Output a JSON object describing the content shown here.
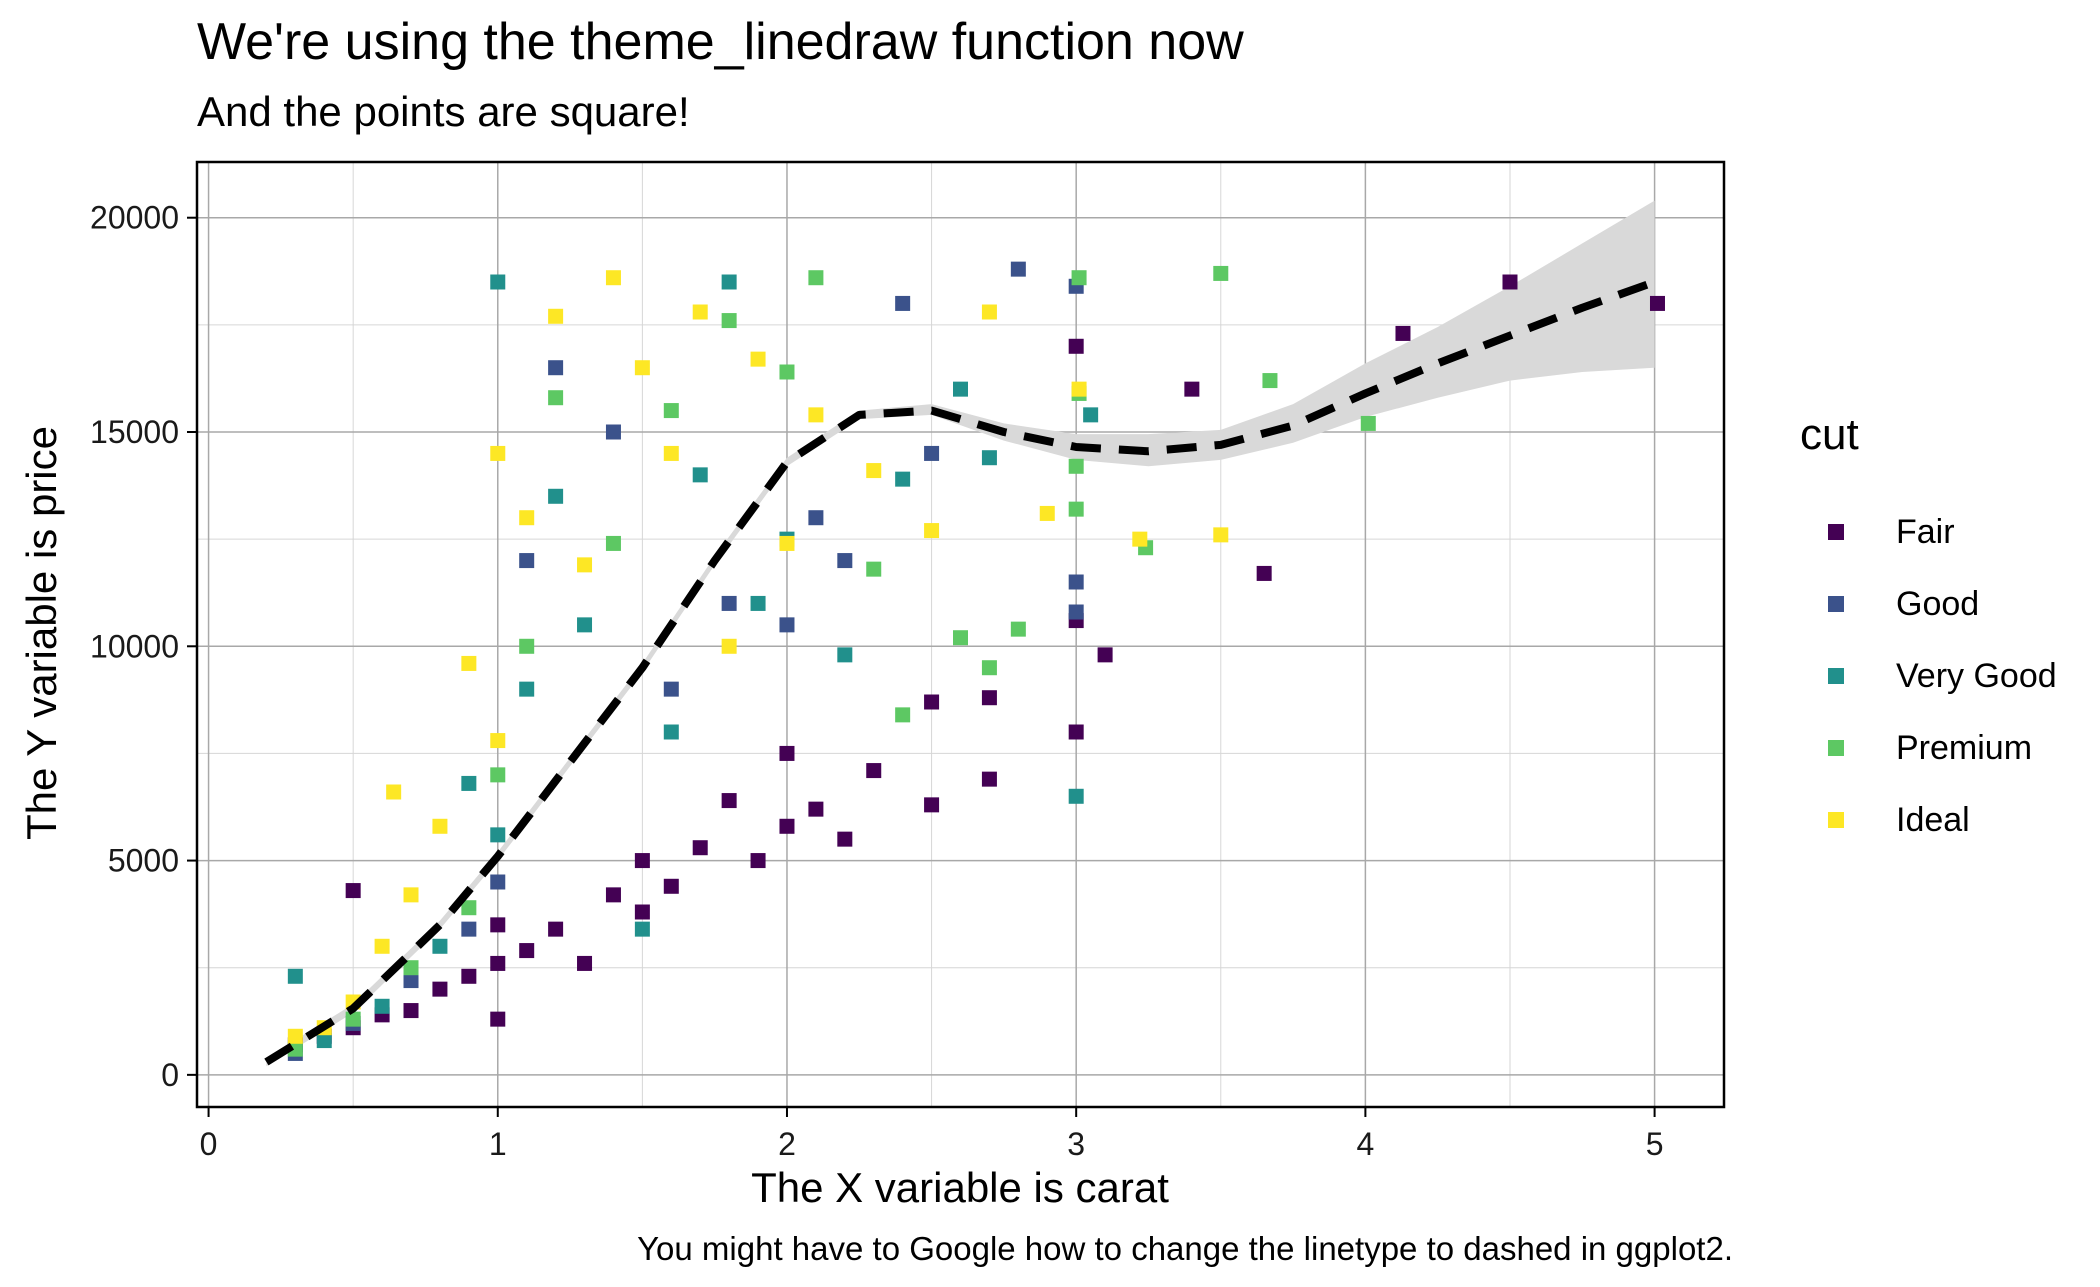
{
  "chart_data": {
    "type": "scatter",
    "title": "We're using the theme_linedraw function now",
    "subtitle": "And the points are square!",
    "caption": "You might have to Google how to change the linetype to dashed in ggplot2.",
    "xlabel": "The X variable is carat",
    "ylabel": "The Y variable is price",
    "xlim": [
      -0.04,
      5.24
    ],
    "ylim": [
      -750,
      21300
    ],
    "xticks": [
      0,
      1,
      2,
      3,
      4,
      5
    ],
    "yticks": [
      0,
      5000,
      10000,
      15000,
      20000
    ],
    "xtick_labels": [
      "0",
      "1",
      "2",
      "3",
      "4",
      "5"
    ],
    "ytick_labels": [
      "0",
      "5000",
      "10000",
      "15000",
      "20000"
    ],
    "grid": true,
    "legend": {
      "title": "cut",
      "position": "right",
      "entries": [
        {
          "name": "Fair",
          "color": "#440154"
        },
        {
          "name": "Good",
          "color": "#3b528b"
        },
        {
          "name": "Very Good",
          "color": "#21908c"
        },
        {
          "name": "Premium",
          "color": "#5dc863"
        },
        {
          "name": "Ideal",
          "color": "#fde725"
        }
      ]
    },
    "marker": "square",
    "smooth": {
      "linetype": "dashed",
      "color": "#000000",
      "ribbon_color": "#d9d9d9",
      "points": [
        {
          "x": 0.2,
          "y": 300,
          "lo": 200,
          "hi": 400
        },
        {
          "x": 0.5,
          "y": 1550,
          "lo": 1450,
          "hi": 1650
        },
        {
          "x": 0.8,
          "y": 3500,
          "lo": 3400,
          "hi": 3600
        },
        {
          "x": 1.0,
          "y": 5100,
          "lo": 5000,
          "hi": 5200
        },
        {
          "x": 1.25,
          "y": 7300,
          "lo": 7200,
          "hi": 7400
        },
        {
          "x": 1.5,
          "y": 9500,
          "lo": 9400,
          "hi": 9600
        },
        {
          "x": 1.75,
          "y": 12000,
          "lo": 11900,
          "hi": 12100
        },
        {
          "x": 2.0,
          "y": 14300,
          "lo": 14200,
          "hi": 14400
        },
        {
          "x": 2.25,
          "y": 15400,
          "lo": 15300,
          "hi": 15500
        },
        {
          "x": 2.5,
          "y": 15500,
          "lo": 15400,
          "hi": 15650
        },
        {
          "x": 2.75,
          "y": 15000,
          "lo": 14800,
          "hi": 15200
        },
        {
          "x": 3.0,
          "y": 14650,
          "lo": 14350,
          "hi": 14950
        },
        {
          "x": 3.25,
          "y": 14550,
          "lo": 14200,
          "hi": 14950
        },
        {
          "x": 3.5,
          "y": 14700,
          "lo": 14350,
          "hi": 15050
        },
        {
          "x": 3.75,
          "y": 15150,
          "lo": 14750,
          "hi": 15650
        },
        {
          "x": 4.0,
          "y": 15900,
          "lo": 15350,
          "hi": 16600
        },
        {
          "x": 4.25,
          "y": 16600,
          "lo": 15800,
          "hi": 17450
        },
        {
          "x": 4.5,
          "y": 17250,
          "lo": 16200,
          "hi": 18400
        },
        {
          "x": 4.75,
          "y": 17900,
          "lo": 16400,
          "hi": 19400
        },
        {
          "x": 5.0,
          "y": 18500,
          "lo": 16500,
          "hi": 20400
        }
      ]
    },
    "series": [
      {
        "name": "Fair",
        "points": [
          [
            0.3,
            700
          ],
          [
            0.4,
            900
          ],
          [
            0.5,
            1100
          ],
          [
            0.5,
            4300
          ],
          [
            0.6,
            1400
          ],
          [
            0.7,
            1500
          ],
          [
            0.8,
            2000
          ],
          [
            0.9,
            2300
          ],
          [
            1.0,
            1300
          ],
          [
            1.0,
            2600
          ],
          [
            1.0,
            3500
          ],
          [
            1.1,
            2900
          ],
          [
            1.2,
            3400
          ],
          [
            1.3,
            2600
          ],
          [
            1.4,
            4200
          ],
          [
            1.5,
            3800
          ],
          [
            1.5,
            5000
          ],
          [
            1.6,
            4400
          ],
          [
            1.7,
            5300
          ],
          [
            1.8,
            6400
          ],
          [
            1.9,
            5000
          ],
          [
            2.0,
            5800
          ],
          [
            2.0,
            7500
          ],
          [
            2.1,
            6200
          ],
          [
            2.2,
            5500
          ],
          [
            2.3,
            7100
          ],
          [
            2.5,
            6300
          ],
          [
            2.5,
            8700
          ],
          [
            2.7,
            6900
          ],
          [
            2.7,
            8800
          ],
          [
            3.0,
            8000
          ],
          [
            3.0,
            10600
          ],
          [
            3.0,
            17000
          ],
          [
            3.1,
            9800
          ],
          [
            3.4,
            16000
          ],
          [
            3.65,
            11700
          ],
          [
            4.13,
            17300
          ],
          [
            4.5,
            18500
          ],
          [
            5.01,
            18000
          ]
        ]
      },
      {
        "name": "Good",
        "points": [
          [
            0.3,
            500
          ],
          [
            0.5,
            1200
          ],
          [
            0.7,
            2200
          ],
          [
            0.9,
            3400
          ],
          [
            1.0,
            4500
          ],
          [
            1.1,
            12000
          ],
          [
            1.2,
            16500
          ],
          [
            1.4,
            15000
          ],
          [
            1.6,
            9000
          ],
          [
            1.8,
            11000
          ],
          [
            2.0,
            10500
          ],
          [
            2.1,
            13000
          ],
          [
            2.2,
            12000
          ],
          [
            2.4,
            18000
          ],
          [
            2.5,
            14500
          ],
          [
            2.8,
            18800
          ],
          [
            3.0,
            11500
          ],
          [
            3.0,
            18400
          ],
          [
            3.0,
            10800
          ]
        ]
      },
      {
        "name": "Very Good",
        "points": [
          [
            0.3,
            2300
          ],
          [
            0.4,
            800
          ],
          [
            0.6,
            1600
          ],
          [
            0.8,
            3000
          ],
          [
            0.9,
            6800
          ],
          [
            1.0,
            5600
          ],
          [
            1.0,
            18500
          ],
          [
            1.1,
            9000
          ],
          [
            1.2,
            13500
          ],
          [
            1.3,
            10500
          ],
          [
            1.5,
            3400
          ],
          [
            1.6,
            8000
          ],
          [
            1.7,
            14000
          ],
          [
            1.8,
            18500
          ],
          [
            1.9,
            11000
          ],
          [
            2.0,
            12500
          ],
          [
            2.2,
            9800
          ],
          [
            2.4,
            13900
          ],
          [
            2.6,
            16000
          ],
          [
            2.7,
            14400
          ],
          [
            3.0,
            6500
          ],
          [
            3.05,
            15400
          ]
        ]
      },
      {
        "name": "Premium",
        "points": [
          [
            0.3,
            600
          ],
          [
            0.5,
            1300
          ],
          [
            0.7,
            2500
          ],
          [
            0.9,
            3900
          ],
          [
            1.0,
            7000
          ],
          [
            1.1,
            10000
          ],
          [
            1.2,
            15800
          ],
          [
            1.4,
            12400
          ],
          [
            1.6,
            15500
          ],
          [
            1.8,
            17600
          ],
          [
            2.0,
            16400
          ],
          [
            2.1,
            18600
          ],
          [
            2.3,
            11800
          ],
          [
            2.4,
            8400
          ],
          [
            2.6,
            10200
          ],
          [
            2.7,
            9500
          ],
          [
            2.8,
            10400
          ],
          [
            3.0,
            14200
          ],
          [
            3.0,
            13200
          ],
          [
            3.01,
            15900
          ],
          [
            3.01,
            18600
          ],
          [
            3.24,
            12300
          ],
          [
            3.5,
            18700
          ],
          [
            3.67,
            16200
          ],
          [
            4.01,
            15200
          ]
        ]
      },
      {
        "name": "Ideal",
        "points": [
          [
            0.3,
            900
          ],
          [
            0.4,
            1100
          ],
          [
            0.5,
            1700
          ],
          [
            0.6,
            3000
          ],
          [
            0.64,
            6600
          ],
          [
            0.7,
            4200
          ],
          [
            0.8,
            5800
          ],
          [
            0.9,
            9600
          ],
          [
            1.0,
            7800
          ],
          [
            1.0,
            14500
          ],
          [
            1.1,
            13000
          ],
          [
            1.2,
            17700
          ],
          [
            1.3,
            11900
          ],
          [
            1.4,
            18600
          ],
          [
            1.5,
            16500
          ],
          [
            1.6,
            14500
          ],
          [
            1.7,
            17800
          ],
          [
            1.8,
            10000
          ],
          [
            1.9,
            16700
          ],
          [
            2.0,
            12400
          ],
          [
            2.1,
            15400
          ],
          [
            2.3,
            14100
          ],
          [
            2.5,
            12700
          ],
          [
            2.7,
            17800
          ],
          [
            2.9,
            13100
          ],
          [
            3.01,
            16000
          ],
          [
            3.22,
            12500
          ],
          [
            3.5,
            12600
          ]
        ]
      }
    ]
  }
}
